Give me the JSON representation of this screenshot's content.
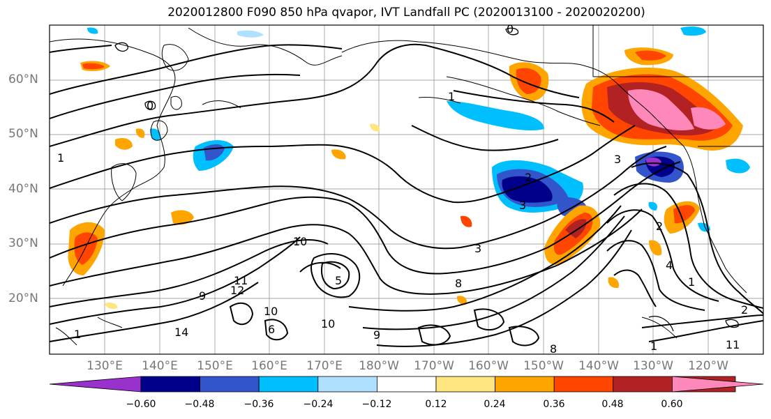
{
  "title": "2020012800 F090 850 hPa qvapor, IVT Landfall PC (2020013100 - 2020020200)",
  "latitude_labels": [
    "60°N",
    "50°N",
    "40°N",
    "30°N",
    "20°N"
  ],
  "longitude_labels": [
    "130°E",
    "140°E",
    "150°E",
    "160°E",
    "170°E",
    "180°W",
    "170°W",
    "160°W",
    "150°W",
    "140°W",
    "130°W",
    "120°W"
  ],
  "contour_labels": [
    "0",
    "0",
    "1",
    "1",
    "2",
    "3",
    "3",
    "3",
    "2",
    "4",
    "1",
    "10",
    "12",
    "14",
    "9",
    "11",
    "10",
    "5",
    "8",
    "1",
    "9",
    "2",
    "11",
    "10",
    "8",
    "6",
    "1"
  ],
  "colorbar": {
    "ticks": [
      "−0.60",
      "−0.48",
      "−0.36",
      "−0.24",
      "−0.12",
      "0.12",
      "0.24",
      "0.36",
      "0.48",
      "0.60"
    ],
    "colors": [
      "#9932cc",
      "#00008b",
      "#3355cc",
      "#00bfff",
      "#b0e0ff",
      "#ffffff",
      "#ffe680",
      "#ffa500",
      "#ff4500",
      "#b22222",
      "#ff88bb"
    ]
  }
}
